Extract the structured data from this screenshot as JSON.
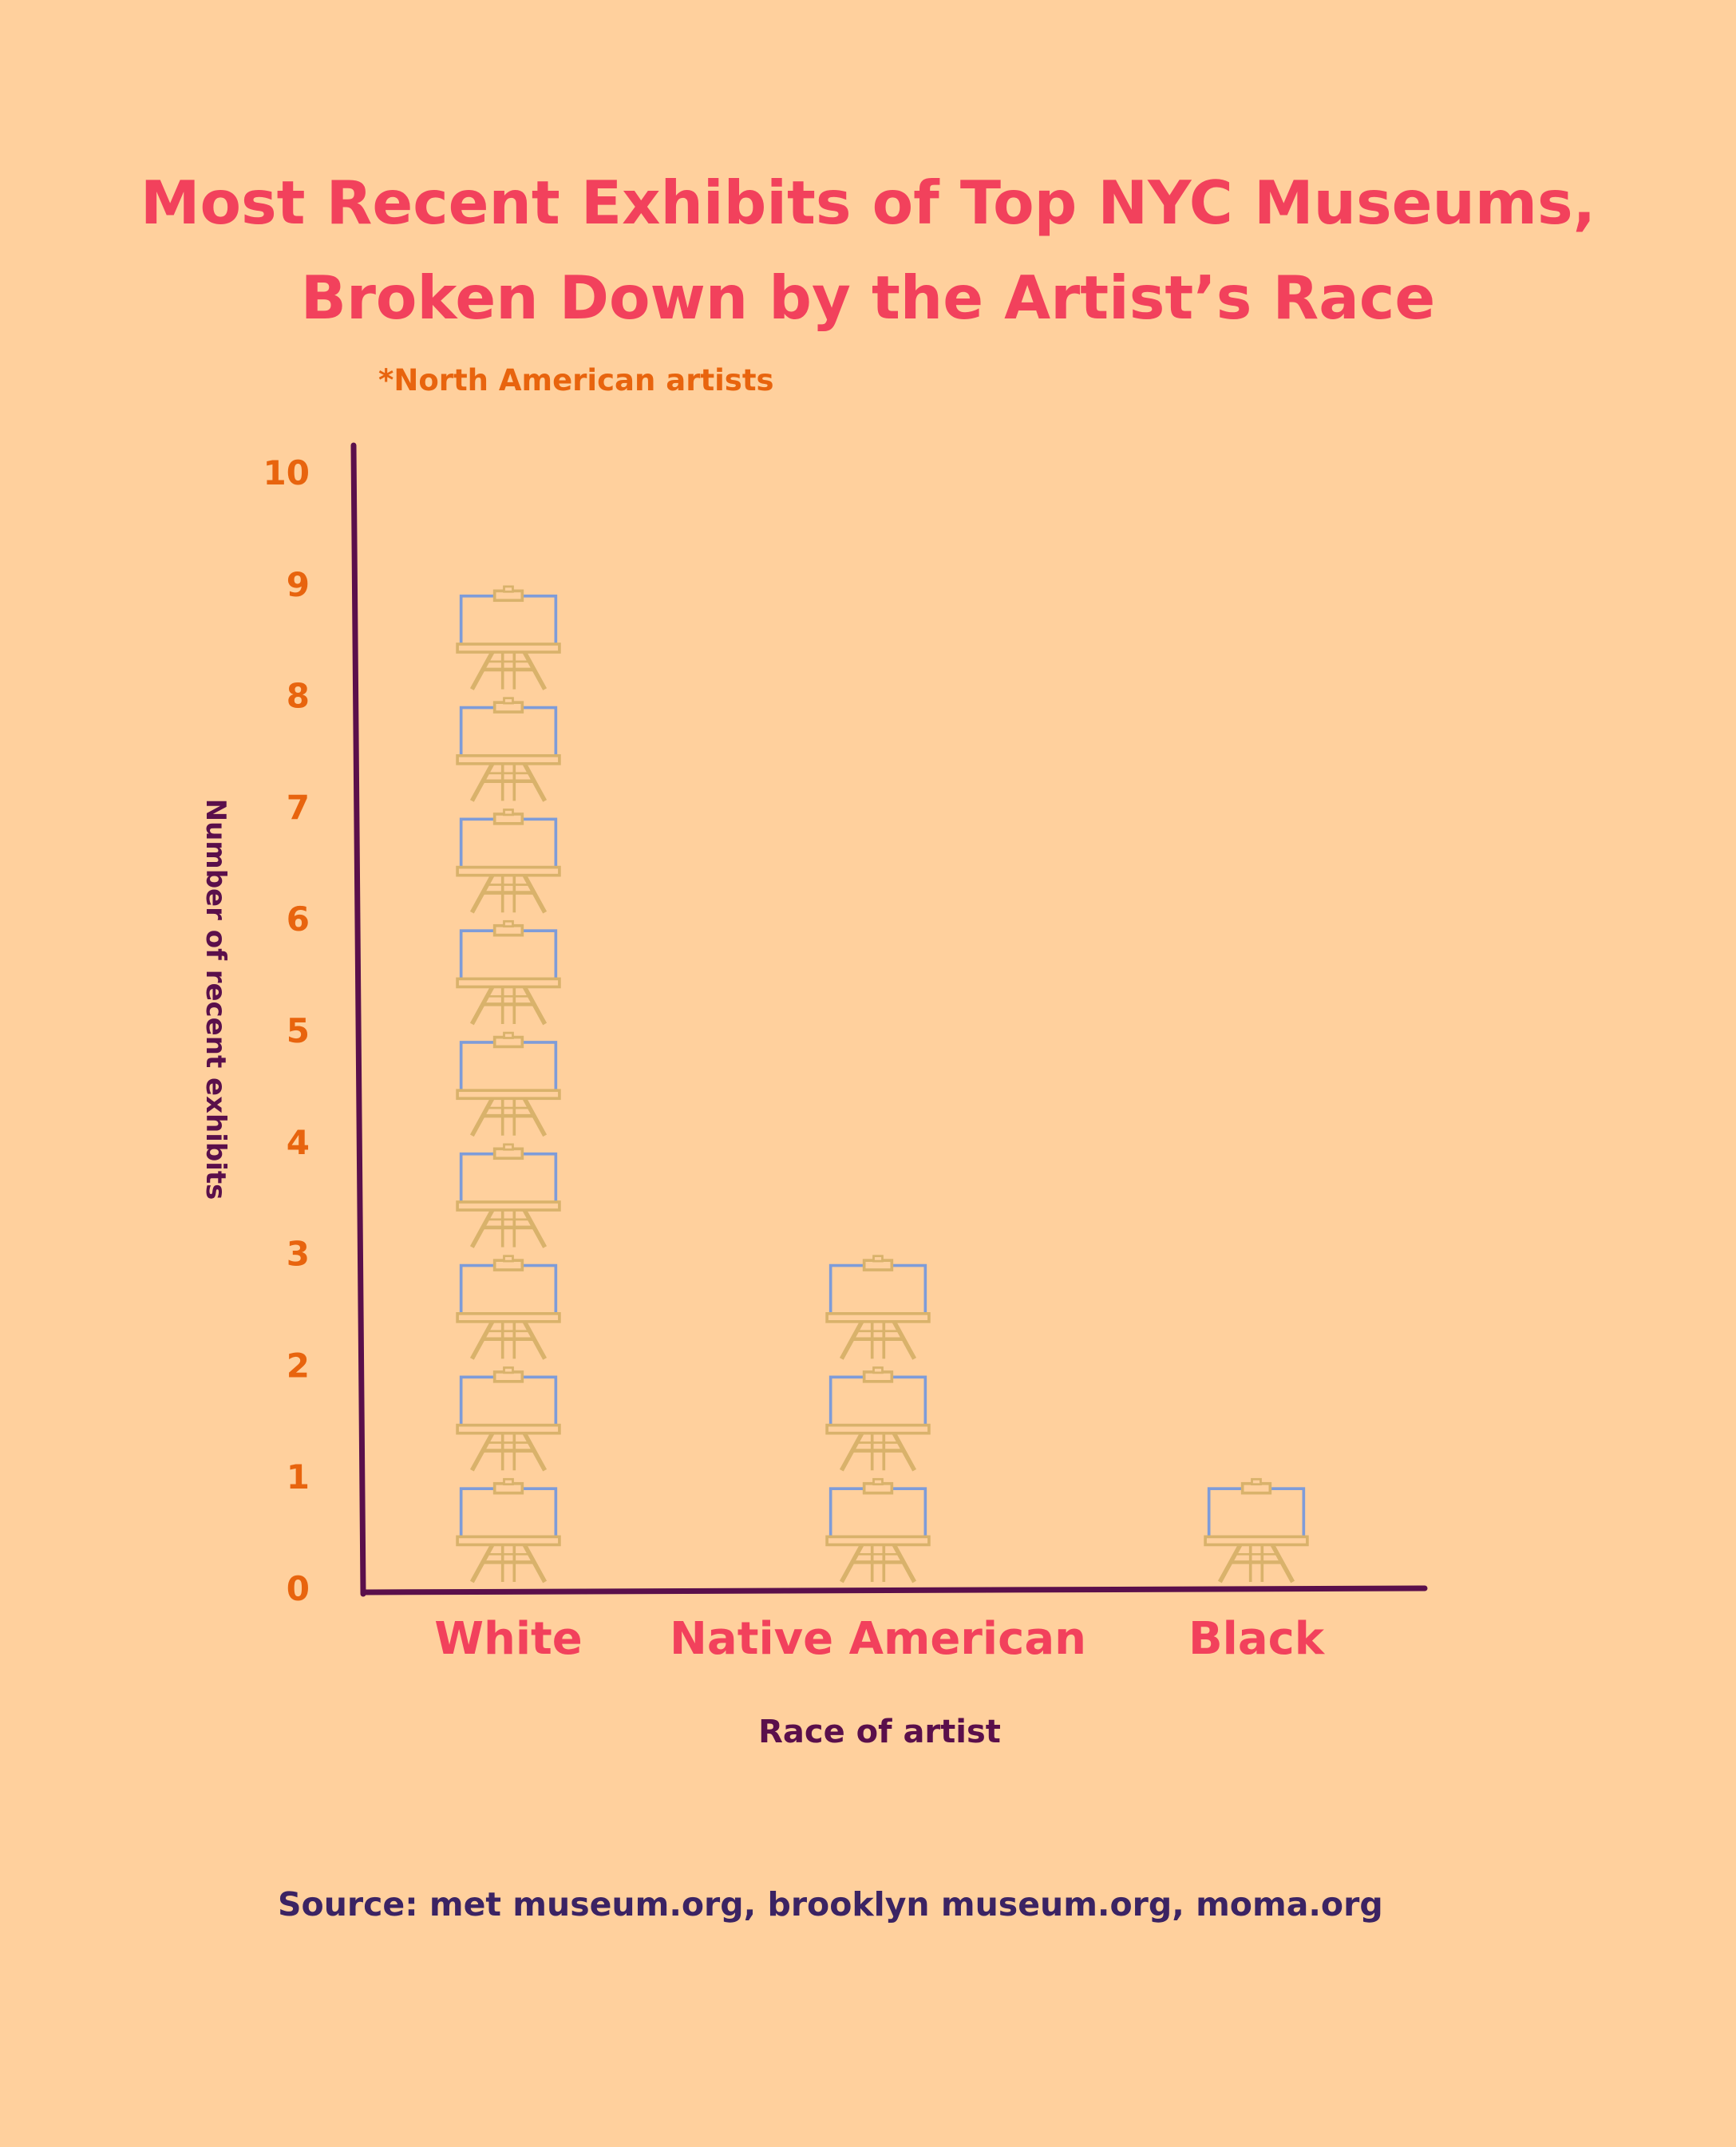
{
  "chart_data": {
    "type": "bar",
    "title_lines": [
      "Most Recent Exhibits of Top NYC Museums,",
      "Broken Down by the Artist’s Race"
    ],
    "subtitle": "*North American artists",
    "xlabel": "Race of artist",
    "ylabel": "Number of recent exhibits",
    "categories": [
      "White",
      "Native American",
      "Black"
    ],
    "values": [
      9,
      3,
      1
    ],
    "ylim": [
      0,
      10
    ],
    "yticks": [
      "0",
      "1",
      "2",
      "3",
      "4",
      "5",
      "6",
      "7",
      "8",
      "9",
      "10"
    ],
    "grid": false,
    "legend": "none",
    "mark": "easel-icon"
  },
  "source": "Source: met museum.org, brooklyn museum.org, moma.org",
  "colors": {
    "background": "#FFD09D",
    "title": "#F2415C",
    "subtitle": "#E8640E",
    "tick_labels": "#E8640E",
    "category_labels": "#F2415C",
    "axis": "#5A0F4B",
    "easel_frame": "#D9B26B",
    "canvas_outline": "#7E9CD9",
    "source": "#3B2363"
  }
}
